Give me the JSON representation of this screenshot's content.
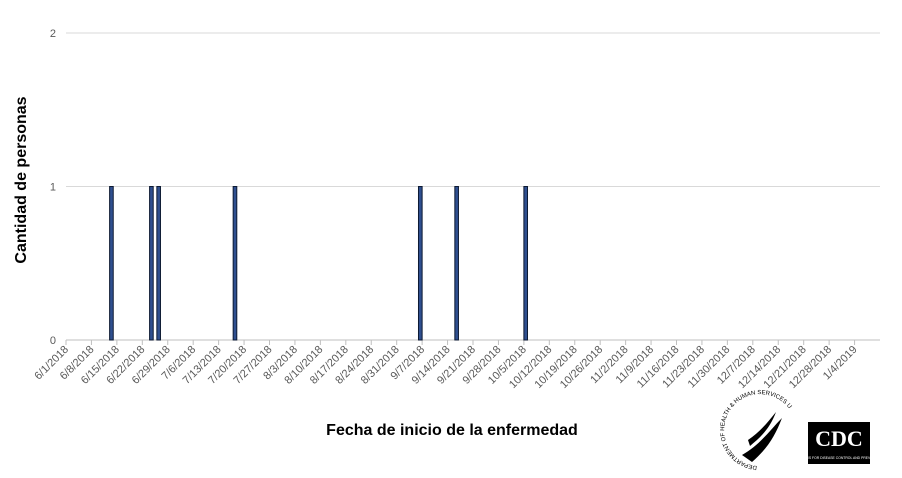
{
  "chart_data": {
    "type": "bar",
    "y_label": "Cantidad de personas",
    "x_label": "Fecha de inicio de la enfermedad",
    "x": [
      12,
      23,
      25,
      46,
      97,
      107,
      126
    ],
    "values": [
      1,
      1,
      1,
      1,
      1,
      1,
      1
    ],
    "color": "#2f4f8f",
    "xlim": [
      0,
      224
    ],
    "xticks": [
      {
        "value": 0,
        "label": "6/1/2018"
      },
      {
        "value": 7,
        "label": "6/8/2018"
      },
      {
        "value": 14,
        "label": "6/15/2018"
      },
      {
        "value": 21,
        "label": "6/22/2018"
      },
      {
        "value": 28,
        "label": "6/29/2018"
      },
      {
        "value": 35,
        "label": "7/6/2018"
      },
      {
        "value": 42,
        "label": "7/13/2018"
      },
      {
        "value": 49,
        "label": "7/20/2018"
      },
      {
        "value": 56,
        "label": "7/27/2018"
      },
      {
        "value": 63,
        "label": "8/3/2018"
      },
      {
        "value": 70,
        "label": "8/10/2018"
      },
      {
        "value": 77,
        "label": "8/17/2018"
      },
      {
        "value": 84,
        "label": "8/24/2018"
      },
      {
        "value": 91,
        "label": "8/31/2018"
      },
      {
        "value": 98,
        "label": "9/7/2018"
      },
      {
        "value": 105,
        "label": "9/14/2018"
      },
      {
        "value": 112,
        "label": "9/21/2018"
      },
      {
        "value": 119,
        "label": "9/28/2018"
      },
      {
        "value": 126,
        "label": "10/5/2018"
      },
      {
        "value": 133,
        "label": "10/12/2018"
      },
      {
        "value": 140,
        "label": "10/19/2018"
      },
      {
        "value": 147,
        "label": "10/26/2018"
      },
      {
        "value": 154,
        "label": "11/2/2018"
      },
      {
        "value": 161,
        "label": "11/9/2018"
      },
      {
        "value": 168,
        "label": "11/16/2018"
      },
      {
        "value": 175,
        "label": "11/23/2018"
      },
      {
        "value": 182,
        "label": "11/30/2018"
      },
      {
        "value": 189,
        "label": "12/7/2018"
      },
      {
        "value": 196,
        "label": "12/14/2018"
      },
      {
        "value": 203,
        "label": "12/21/2018"
      },
      {
        "value": 210,
        "label": "12/28/2018"
      },
      {
        "value": 217,
        "label": "1/4/2019"
      }
    ],
    "ylim": [
      0,
      2
    ],
    "yticks": [
      0,
      1,
      2
    ],
    "grid": true
  },
  "logos": {
    "hhs": "DEPARTMENT OF HEALTH & HUMAN SERVICES USA",
    "cdc": "CDC",
    "cdc_sub": "CENTERS FOR DISEASE CONTROL AND PREVENTION"
  }
}
